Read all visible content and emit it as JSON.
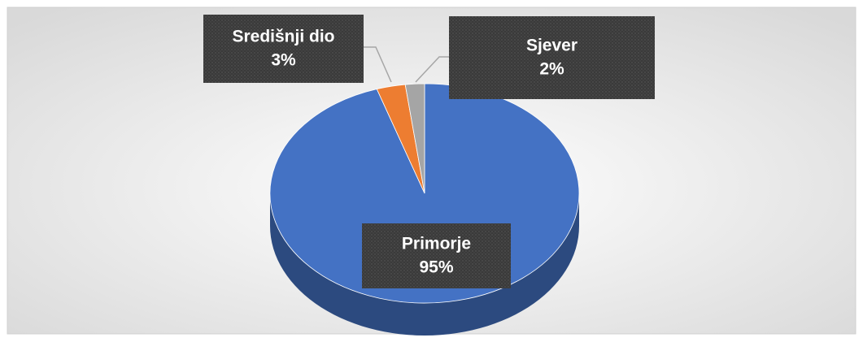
{
  "chart_data": {
    "type": "pie",
    "categories": [
      "Primorje",
      "Središnji dio",
      "Sjever"
    ],
    "values": [
      95,
      3,
      2
    ],
    "value_labels": [
      "95%",
      "3%",
      "2%"
    ],
    "colors": [
      "#4472c4",
      "#ed7d31",
      "#a5a5a5"
    ]
  }
}
